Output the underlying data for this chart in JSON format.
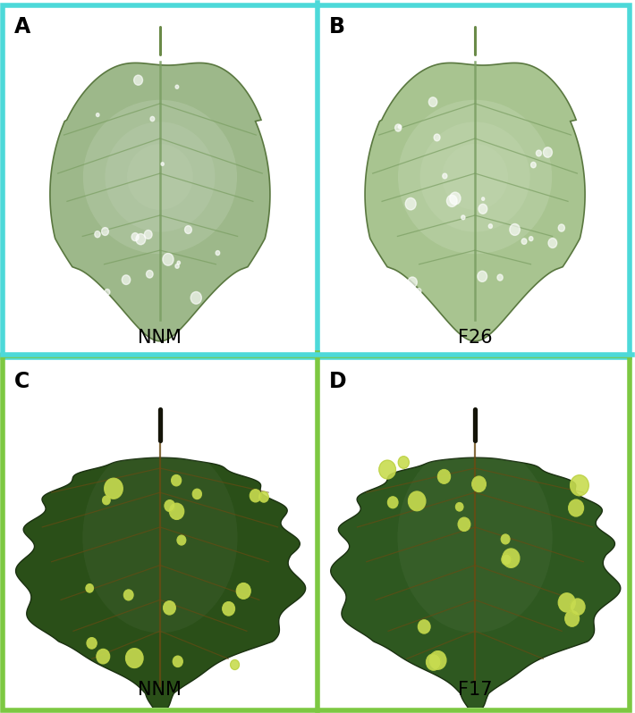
{
  "figsize": [
    7.1,
    7.98
  ],
  "dpi": 100,
  "panel_labels": [
    "A",
    "B",
    "C",
    "D"
  ],
  "treatment_labels": [
    "NNM",
    "F26",
    "NNM",
    "F17"
  ],
  "top_border_color": "#4DD9D9",
  "bottom_border_color": "#7DC842",
  "border_linewidth": 4.0,
  "label_fontsize": 17,
  "treatment_fontsize": 15,
  "background_color": "#ffffff",
  "leaf_top_A_color": "#9db88a",
  "leaf_top_B_color": "#a8c490",
  "leaf_bottom_C_color": "#2a4f18",
  "leaf_bottom_D_color": "#2e5820",
  "vein_top_color": "#7a9e62",
  "vein_bottom_color": "#6b4a12",
  "stem_top_color": "#6a8a48",
  "stem_bottom_color": "#141408"
}
